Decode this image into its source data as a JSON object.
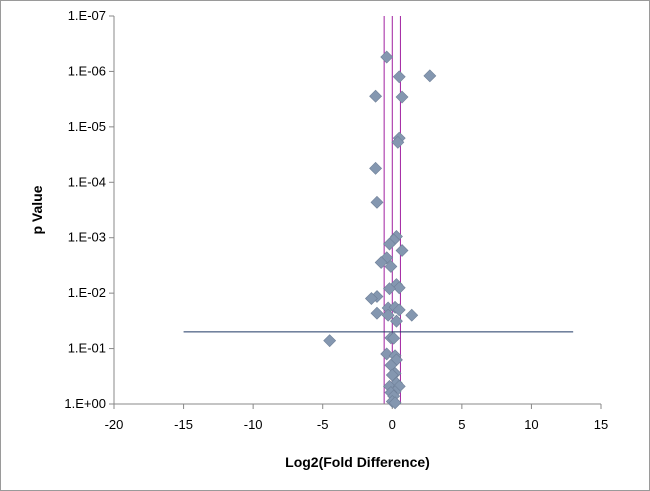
{
  "chart_data": {
    "type": "scatter",
    "title": "",
    "xlabel": "Log2(Fold Difference)",
    "ylabel": "p Value",
    "xlim": [
      -20,
      15
    ],
    "ylim": [
      1,
      1e-07
    ],
    "y_scale": "log",
    "y_reversed": true,
    "x_ticks": [
      "-20",
      "-15",
      "-10",
      "-5",
      "0",
      "5",
      "10",
      "15"
    ],
    "y_ticks": [
      "1.E+00",
      "1.E-01",
      "1.E-02",
      "1.E-03",
      "1.E-04",
      "1.E-05",
      "1.E-06",
      "1.E-07"
    ],
    "grid": false,
    "legend": "none",
    "marker": "diamond",
    "colors": {
      "points": "#8497b0",
      "point_edge": "#6e7f97",
      "vertical_lines": "#a020a0",
      "threshold_line": "#1f3864",
      "axes": "#888888"
    },
    "reference_lines": {
      "vertical_x": [
        -0.585,
        0,
        0.585
      ],
      "horizontal": {
        "p": 0.05,
        "x_from": -15,
        "x_to": 13
      }
    },
    "points": [
      {
        "x": -0.4,
        "p": 5.5e-07
      },
      {
        "x": 0.5,
        "p": 1.25e-06
      },
      {
        "x": 2.7,
        "p": 1.2e-06
      },
      {
        "x": -1.2,
        "p": 2.8e-06
      },
      {
        "x": 0.7,
        "p": 2.9e-06
      },
      {
        "x": 0.5,
        "p": 1.6e-05
      },
      {
        "x": 0.4,
        "p": 1.9e-05
      },
      {
        "x": -1.2,
        "p": 5.6e-05
      },
      {
        "x": -1.1,
        "p": 0.00023
      },
      {
        "x": 0.3,
        "p": 0.00095
      },
      {
        "x": 0.1,
        "p": 0.0011
      },
      {
        "x": -0.2,
        "p": 0.0013
      },
      {
        "x": 0.7,
        "p": 0.0017
      },
      {
        "x": -0.4,
        "p": 0.0023
      },
      {
        "x": -0.8,
        "p": 0.0028
      },
      {
        "x": -0.1,
        "p": 0.0033
      },
      {
        "x": 0.3,
        "p": 0.007
      },
      {
        "x": 0.5,
        "p": 0.008
      },
      {
        "x": -0.2,
        "p": 0.0083
      },
      {
        "x": -1.1,
        "p": 0.0115
      },
      {
        "x": -1.5,
        "p": 0.0125
      },
      {
        "x": -0.3,
        "p": 0.0185
      },
      {
        "x": 0.2,
        "p": 0.018
      },
      {
        "x": 0.5,
        "p": 0.02
      },
      {
        "x": -1.1,
        "p": 0.023
      },
      {
        "x": -0.3,
        "p": 0.025
      },
      {
        "x": 1.4,
        "p": 0.025
      },
      {
        "x": 0.3,
        "p": 0.032
      },
      {
        "x": -0.1,
        "p": 0.064
      },
      {
        "x": 0.1,
        "p": 0.065
      },
      {
        "x": -4.5,
        "p": 0.072
      },
      {
        "x": -0.4,
        "p": 0.125
      },
      {
        "x": 0.2,
        "p": 0.135
      },
      {
        "x": 0.3,
        "p": 0.16
      },
      {
        "x": -0.1,
        "p": 0.2
      },
      {
        "x": 0.2,
        "p": 0.28
      },
      {
        "x": 0.0,
        "p": 0.3
      },
      {
        "x": 0.3,
        "p": 0.42
      },
      {
        "x": -0.2,
        "p": 0.48
      },
      {
        "x": 0.5,
        "p": 0.48
      },
      {
        "x": 0.2,
        "p": 0.6
      },
      {
        "x": -0.1,
        "p": 0.62
      },
      {
        "x": 0.1,
        "p": 0.72
      },
      {
        "x": 0.0,
        "p": 0.9
      },
      {
        "x": 0.2,
        "p": 0.95
      }
    ]
  }
}
